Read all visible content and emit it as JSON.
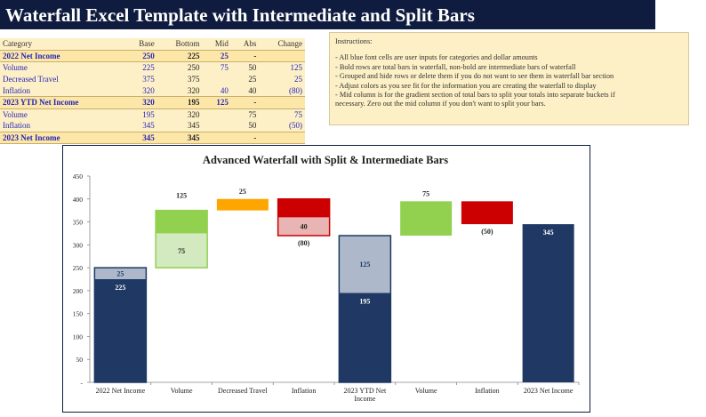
{
  "title": "Waterfall Excel Template with Intermediate and Split Bars",
  "table": {
    "headers": [
      "Category",
      "Base",
      "Bottom",
      "Mid",
      "Abs",
      "Change"
    ],
    "rows": [
      {
        "kind": "total",
        "cells": [
          "2022 Net Income",
          "250",
          "225",
          "25",
          "-",
          ""
        ]
      },
      {
        "kind": "row",
        "cells": [
          "Volume",
          "225",
          "250",
          "75",
          "50",
          "125"
        ]
      },
      {
        "kind": "row",
        "cells": [
          "Decreased Travel",
          "375",
          "375",
          "",
          "25",
          "25"
        ]
      },
      {
        "kind": "row",
        "cells": [
          "Inflation",
          "320",
          "320",
          "40",
          "40",
          "(80)"
        ]
      },
      {
        "kind": "total",
        "cells": [
          "2023 YTD Net Income",
          "320",
          "195",
          "125",
          "-",
          ""
        ]
      },
      {
        "kind": "row",
        "cells": [
          "Volume",
          "195",
          "320",
          "",
          "75",
          "75"
        ]
      },
      {
        "kind": "row",
        "cells": [
          "Inflation",
          "345",
          "345",
          "",
          "50",
          "(50)"
        ]
      },
      {
        "kind": "total",
        "cells": [
          "2023 Net Income",
          "345",
          "345",
          "",
          "-",
          ""
        ]
      }
    ]
  },
  "instructions": {
    "heading": "Instructions:",
    "lines": [
      "- All blue font cells are user inputs for categories  and dollar amounts",
      "- Bold rows are total bars in waterfall, non-bold  are intermediate  bars of waterfall",
      "- Grouped and hide rows or delete them if you  do not want to see them in waterfall bar section",
      "- Adjust colors as you see fit for the information  you are creating the waterfall to display",
      "- Mid column is for the gradient section of total bars to split your totals into separate buckets if",
      "necessary. Zero out the mid column if you don't want to split your bars."
    ]
  },
  "chart_data": {
    "type": "bar",
    "title": "Advanced Waterfall with Split & Intermediate Bars",
    "categories": [
      "2022 Net Income",
      "Volume",
      "Decreased Travel",
      "Inflation",
      "2023 YTD Net Income",
      "Volume",
      "Inflation",
      "2023 Net Income"
    ],
    "ylim": [
      0,
      450
    ],
    "yticks": [
      0,
      50,
      100,
      150,
      200,
      250,
      300,
      350,
      400,
      450
    ],
    "grid": false,
    "bars": [
      {
        "category": "2022 Net Income",
        "kind": "total",
        "bottom": 225,
        "mid": 25,
        "labels": [
          "225",
          "25"
        ]
      },
      {
        "category": "Volume",
        "kind": "increase",
        "base": 250,
        "mid": 75,
        "top": 50,
        "labels": [
          "75",
          "125"
        ]
      },
      {
        "category": "Decreased Travel",
        "kind": "increase",
        "base": 375,
        "mid": 0,
        "top": 25,
        "labels": [
          "25"
        ]
      },
      {
        "category": "Inflation",
        "kind": "decrease",
        "base": 320,
        "mid": 40,
        "top": 40,
        "labels": [
          "40",
          "(80)"
        ]
      },
      {
        "category": "2023 YTD Net Income",
        "kind": "total",
        "bottom": 195,
        "mid": 125,
        "labels": [
          "195",
          "125"
        ]
      },
      {
        "category": "Volume",
        "kind": "increase",
        "base": 320,
        "mid": 0,
        "top": 75,
        "labels": [
          "75"
        ]
      },
      {
        "category": "Inflation",
        "kind": "decrease",
        "base": 345,
        "mid": 0,
        "top": 50,
        "labels": [
          "(50)"
        ]
      },
      {
        "category": "2023 Net Income",
        "kind": "total",
        "bottom": 345,
        "mid": 0,
        "labels": [
          "345"
        ]
      }
    ],
    "colors": {
      "total": "#1f3864",
      "total_mid": "#adb9ca",
      "increase": "#92d050",
      "increase_mid": "#d3eac0",
      "increase_step": "#ffa500",
      "decrease": "#cc0000",
      "decrease_mid": "#e8b4b4"
    }
  }
}
